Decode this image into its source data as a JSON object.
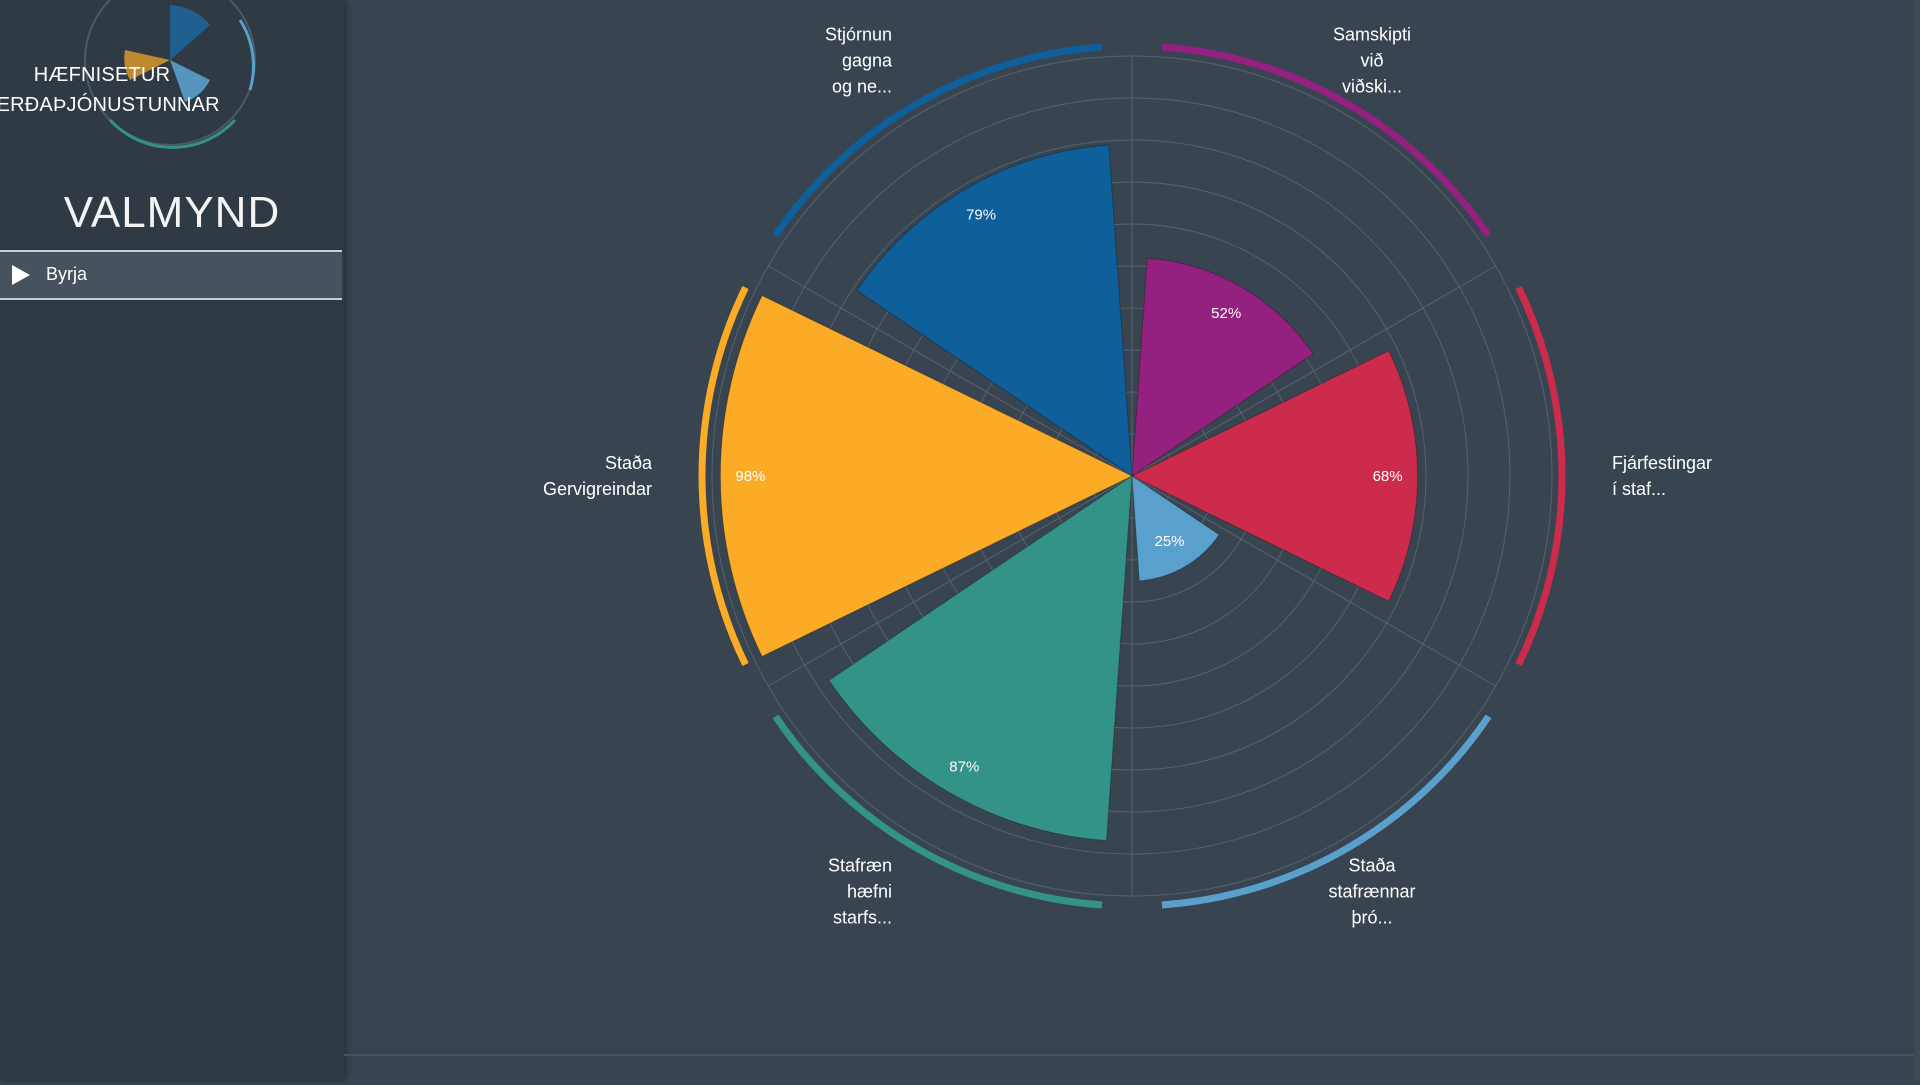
{
  "sidebar": {
    "logo_line1": "HÆFNISETUR",
    "logo_line2": "FERÐAÞJÓNUSTUNNAR",
    "menu_title": "VALMYND",
    "menu_items": [
      {
        "label": "Byrja",
        "icon": "play-icon"
      }
    ]
  },
  "chart_data": {
    "type": "polar-area",
    "title": "",
    "rlim": [
      0,
      100
    ],
    "grid": true,
    "series": [
      {
        "label_lines": [
          "Samskipti",
          "við",
          "viðski..."
        ],
        "value": 52,
        "value_label": "52%",
        "color": "#94207f"
      },
      {
        "label_lines": [
          "Fjárfestingar",
          "í staf..."
        ],
        "value": 68,
        "value_label": "68%",
        "color": "#cc2b4b"
      },
      {
        "label_lines": [
          "Staða",
          "stafrænnar",
          "þró..."
        ],
        "value": 25,
        "value_label": "25%",
        "color": "#5aa0cc"
      },
      {
        "label_lines": [
          "Stafræn",
          "hæfni",
          "starfs..."
        ],
        "value": 87,
        "value_label": "87%",
        "color": "#339388"
      },
      {
        "label_lines": [
          "Staða",
          "Gervigreindar"
        ],
        "value": 98,
        "value_label": "98%",
        "color": "#fbab26"
      },
      {
        "label_lines": [
          "Stjórnun",
          "gagna",
          "og ne..."
        ],
        "value": 79,
        "value_label": "79%",
        "color": "#0e5f9a"
      }
    ]
  }
}
